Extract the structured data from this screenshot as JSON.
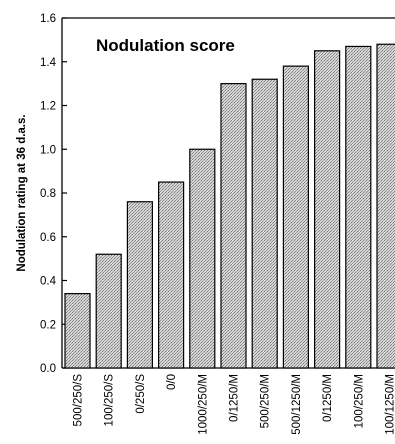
{
  "chart_data": {
    "type": "bar",
    "title": "Nodulation  score",
    "ylabel": "Nodulation  rating  at  36  d.a.s.",
    "xlabel": "",
    "categories": [
      "500/250/S",
      "100/250/S",
      "0/250/S",
      "0/0",
      "1000/250/M",
      "0/1250/M",
      "500/250/M",
      "500/1250/M",
      "0/1250/M",
      "100/250/M",
      "100/1250/M"
    ],
    "values": [
      0.34,
      0.52,
      0.76,
      0.85,
      1.0,
      1.3,
      1.32,
      1.38,
      1.45,
      1.47,
      1.48
    ],
    "ylim": [
      0.0,
      1.6
    ],
    "yticks": [
      "0.0",
      "0.2",
      "0.4",
      "0.6",
      "0.8",
      "1.0",
      "1.2",
      "1.4",
      "1.6"
    ],
    "grid": false,
    "bar_fill": "#c9c9c9",
    "bar_stroke": "#000000"
  }
}
